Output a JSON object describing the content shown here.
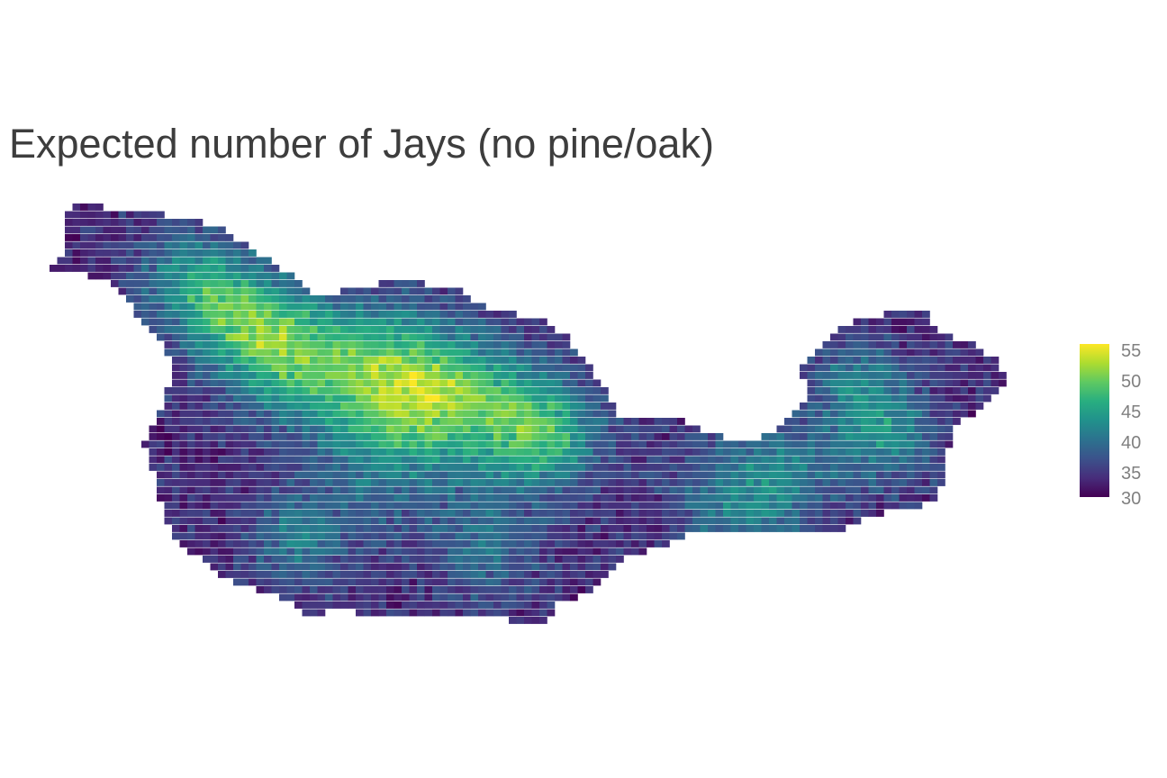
{
  "title": "Expected number of Jays (no pine/oak)",
  "legend": {
    "ticks": [
      "55",
      "50",
      "45",
      "40",
      "35",
      "30"
    ],
    "range": [
      30,
      55
    ],
    "palette": "viridis"
  },
  "colors": {
    "low": "#440154",
    "mid": "#21918c",
    "high": "#fde725",
    "text": "#3d3d3d",
    "legend_text": "#808080"
  }
}
